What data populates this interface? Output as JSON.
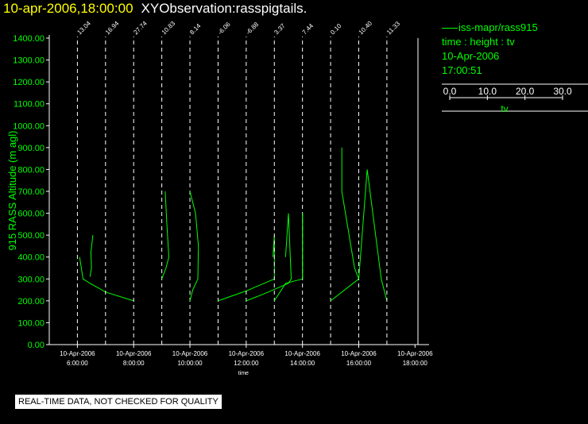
{
  "header": {
    "timestamp": "10-apr-2006,18:00:00",
    "observation": "XYObservation:rasspigtails."
  },
  "legend": {
    "series_label": "iss-mapr/rass915",
    "mapping": "time : height : tv",
    "date": "10-Apr-2006",
    "time": "17:00:51",
    "scale_ticks": [
      "0.0",
      "10.0",
      "20.0",
      "30.0"
    ],
    "scale_label": "tv"
  },
  "footer": {
    "quality_note": "REAL-TIME DATA, NOT CHECKED FOR QUALITY"
  },
  "colors": {
    "background": "#000000",
    "series": "#00ff00",
    "axis_labels": "#00ff00",
    "title_timestamp": "#ffff00",
    "foreground": "#ffffff"
  },
  "chart_data": {
    "type": "line",
    "xlabel": "time",
    "ylabel": "915 RASS Altitude (m agl)",
    "xlim": [
      5.0,
      18.5
    ],
    "ylim": [
      0,
      1400
    ],
    "grid": false,
    "x_ticks": [
      {
        "x": 6,
        "date": "10-Apr-2006",
        "time": "6:00:00"
      },
      {
        "x": 8,
        "date": "10-Apr-2006",
        "time": "8:00:00"
      },
      {
        "x": 10,
        "date": "10-Apr-2006",
        "time": "10:00:00"
      },
      {
        "x": 12,
        "date": "10-Apr-2006",
        "time": "12:00:00"
      },
      {
        "x": 14,
        "date": "10-Apr-2006",
        "time": "14:00:00"
      },
      {
        "x": 16,
        "date": "10-Apr-2006",
        "time": "16:00:00"
      },
      {
        "x": 18,
        "date": "10-Apr-2006",
        "time": "18:00:00"
      }
    ],
    "y_ticks": [
      "0.00",
      "100.00",
      "200.00",
      "300.00",
      "400.00",
      "500.00",
      "600.00",
      "700.00",
      "800.00",
      "900.00",
      "1000.00",
      "1100.00",
      "1200.00",
      "1300.00",
      "1400.00"
    ],
    "y_tick_values": [
      0,
      100,
      200,
      300,
      400,
      500,
      600,
      700,
      800,
      900,
      1000,
      1100,
      1200,
      1300,
      1400
    ],
    "profiles": [
      {
        "x": 6.0,
        "label": "13.04",
        "points": [
          [
            6.08,
            400
          ],
          [
            6.2,
            300
          ],
          [
            6.45,
            280
          ],
          [
            7.0,
            240
          ],
          [
            8.0,
            200
          ]
        ],
        "points2": [
          [
            6.55,
            500
          ],
          [
            6.48,
            420
          ],
          [
            6.5,
            350
          ],
          [
            6.45,
            310
          ]
        ]
      },
      {
        "x": 7.0,
        "label": "16.94",
        "points": []
      },
      {
        "x": 8.0,
        "label": "27.74",
        "points": []
      },
      {
        "x": 9.0,
        "label": "10.83",
        "points": [
          [
            9.0,
            300
          ],
          [
            9.15,
            350
          ],
          [
            9.25,
            400
          ],
          [
            9.18,
            550
          ],
          [
            9.12,
            700
          ]
        ]
      },
      {
        "x": 10.0,
        "label": "8.14",
        "points": [
          [
            10.0,
            700
          ],
          [
            10.2,
            600
          ],
          [
            10.3,
            450
          ],
          [
            10.28,
            300
          ],
          [
            10.1,
            250
          ],
          [
            10.0,
            200
          ]
        ]
      },
      {
        "x": 11.0,
        "label": "-6.06",
        "points": [
          [
            11.0,
            200
          ],
          [
            12.0,
            245
          ],
          [
            13.0,
            300
          ],
          [
            13.0,
            500
          ],
          [
            12.95,
            400
          ]
        ]
      },
      {
        "x": 12.0,
        "label": "-6.88",
        "points": [
          [
            12.0,
            200
          ],
          [
            12.6,
            230
          ],
          [
            13.5,
            280
          ],
          [
            13.6,
            300
          ],
          [
            13.5,
            600
          ],
          [
            13.4,
            400
          ]
        ]
      },
      {
        "x": 13.0,
        "label": "3.37",
        "points": [
          [
            13.0,
            200
          ],
          [
            13.4,
            280
          ],
          [
            14.0,
            300
          ],
          [
            14.0,
            600
          ]
        ]
      },
      {
        "x": 14.0,
        "label": "7.44",
        "points": [
          [
            14.0,
            600
          ],
          [
            14.0,
            300
          ]
        ]
      },
      {
        "x": 15.0,
        "label": "0.10",
        "points": [
          [
            15.0,
            200
          ],
          [
            16.0,
            300
          ],
          [
            15.85,
            350
          ],
          [
            15.4,
            700
          ],
          [
            15.4,
            900
          ]
        ]
      },
      {
        "x": 16.0,
        "label": "10.40",
        "points": [
          [
            16.0,
            300
          ],
          [
            16.3,
            800
          ],
          [
            16.8,
            300
          ],
          [
            17.0,
            200
          ]
        ]
      },
      {
        "x": 17.0,
        "label": "11.33",
        "points": []
      }
    ]
  }
}
